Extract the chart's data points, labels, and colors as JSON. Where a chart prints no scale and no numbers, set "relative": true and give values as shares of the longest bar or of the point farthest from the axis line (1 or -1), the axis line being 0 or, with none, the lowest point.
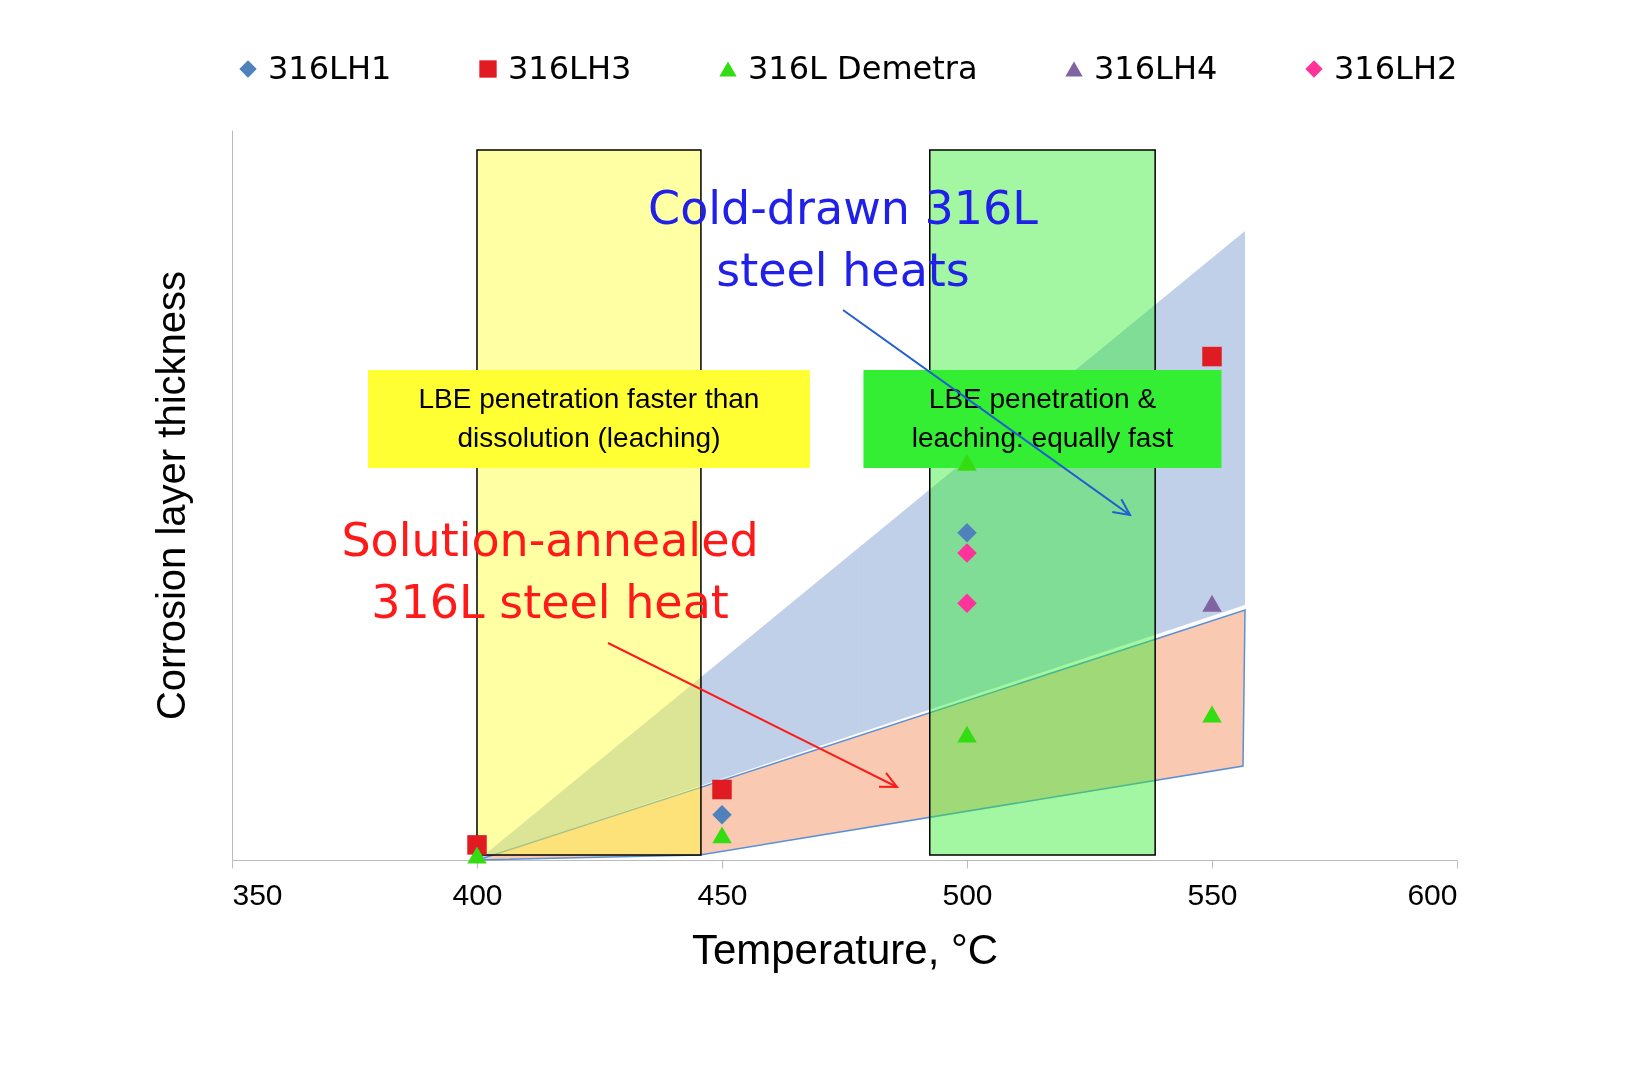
{
  "chart_data": {
    "type": "scatter",
    "relative": true,
    "xlabel": "Temperature, °C",
    "ylabel": "Corrosion layer thickness",
    "xlim": [
      350,
      600
    ],
    "xticks": [
      350,
      400,
      450,
      500,
      550,
      600
    ],
    "grid": false,
    "legend": "top",
    "series": [
      {
        "name": "316LH1",
        "color": "#4f81bd",
        "marker": "diamond",
        "x": [
          450,
          500
        ],
        "values": [
          0.09,
          0.65
        ]
      },
      {
        "name": "316LH3",
        "color": "#e01b22",
        "marker": "square",
        "x": [
          400,
          450,
          550
        ],
        "values": [
          0.03,
          0.14,
          1
        ]
      },
      {
        "name": "316L Demetra",
        "color": "#33dd11",
        "marker": "triangle",
        "x": [
          400,
          450,
          500,
          500,
          550
        ],
        "values": [
          0.01,
          0.05,
          0.25,
          0.79,
          0.29
        ]
      },
      {
        "name": "316LH4",
        "color": "#8064a2",
        "marker": "triangle",
        "x": [
          550
        ],
        "values": [
          0.51
        ]
      },
      {
        "name": "316LH2",
        "color": "#ff3399",
        "marker": "diamond",
        "x": [
          500,
          500
        ],
        "values": [
          0.61,
          0.51
        ]
      }
    ],
    "bands": [
      {
        "axis": "x",
        "from": 400,
        "to": 445.7,
        "label": "LBE penetration faster than\ndissolution (leaching)",
        "color": "#ffff33"
      },
      {
        "axis": "x",
        "from": 492.4,
        "to": 538.4,
        "label": "LBE penetration &\nleaching: equally fast",
        "color": "#33ee33"
      }
    ],
    "annotations": [
      "Cold-drawn 316L\nsteel heats",
      "Solution-annealed\n316L steel heat"
    ]
  }
}
